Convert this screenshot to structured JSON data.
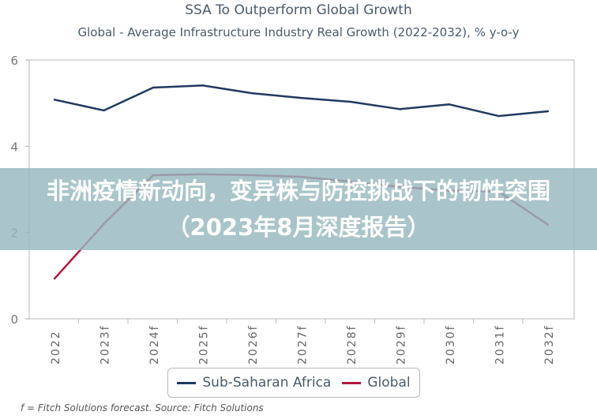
{
  "banner": {
    "text": "非洲疫情新动向，变异株与防控挑战下的韧性突围（2023年8月深度报告）"
  },
  "footnote": "f = Fitch Solutions forecast. Source: Fitch Solutions",
  "chart_data": {
    "type": "line",
    "title": "SSA To Outperform Global Growth",
    "subtitle": "Global - Average Infrastructure Industry Real Growth (2022-2032), % y-o-y",
    "categories": [
      "2022",
      "2023f",
      "2024f",
      "2025f",
      "2026f",
      "2027f",
      "2028f",
      "2029f",
      "2030f",
      "2031f",
      "2032f"
    ],
    "ylim": [
      0,
      6
    ],
    "yticks": [
      "0",
      "2",
      "4",
      "6"
    ],
    "grid": false,
    "legend_position": "bottom",
    "series": [
      {
        "name": "Sub-Saharan Africa",
        "color": "#1f3a5f",
        "values": [
          5.08,
          4.83,
          5.36,
          5.41,
          5.23,
          5.12,
          5.03,
          4.86,
          4.97,
          4.7,
          4.81
        ]
      },
      {
        "name": "Global",
        "color": "#b0173f",
        "values": [
          0.93,
          2.2,
          3.33,
          3.35,
          3.33,
          3.29,
          3.18,
          3.06,
          2.97,
          2.95,
          2.18
        ]
      }
    ]
  }
}
